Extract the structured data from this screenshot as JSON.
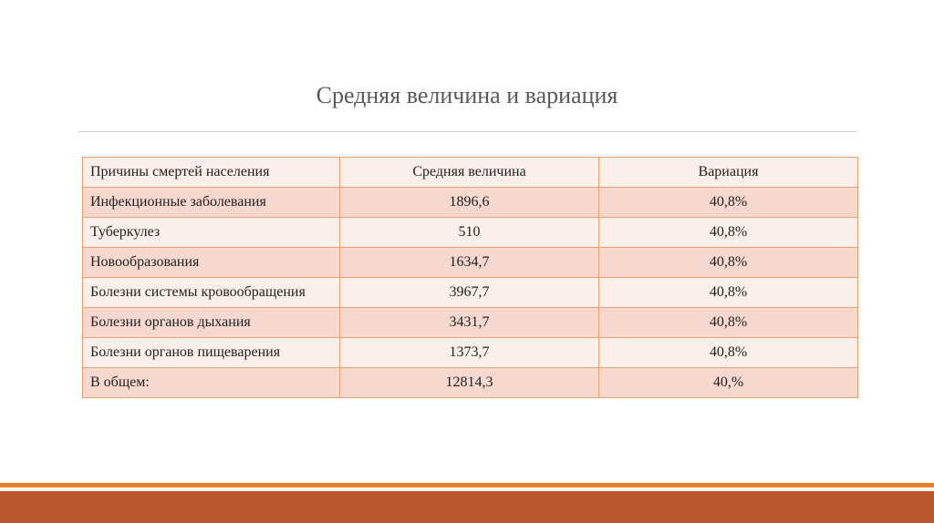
{
  "header": {
    "title": "Средняя величина и вариация"
  },
  "table": {
    "columns": [
      "Причины смертей населения",
      "Средняя величина",
      "Вариация"
    ],
    "rows": [
      [
        "Инфекционные заболевания",
        "1896,6",
        "40,8%"
      ],
      [
        "Туберкулез",
        "510",
        "40,8%"
      ],
      [
        "Новообразования",
        "1634,7",
        "40,8%"
      ],
      [
        "Болезни системы кровообращения",
        "3967,7",
        "40,8%"
      ],
      [
        "Болезни органов дыхания",
        "3431,7",
        "40,8%"
      ],
      [
        "Болезни органов пищеварения",
        "1373,7",
        "40,8%"
      ],
      [
        "В общем:",
        "12814,3",
        "40,%"
      ]
    ]
  }
}
